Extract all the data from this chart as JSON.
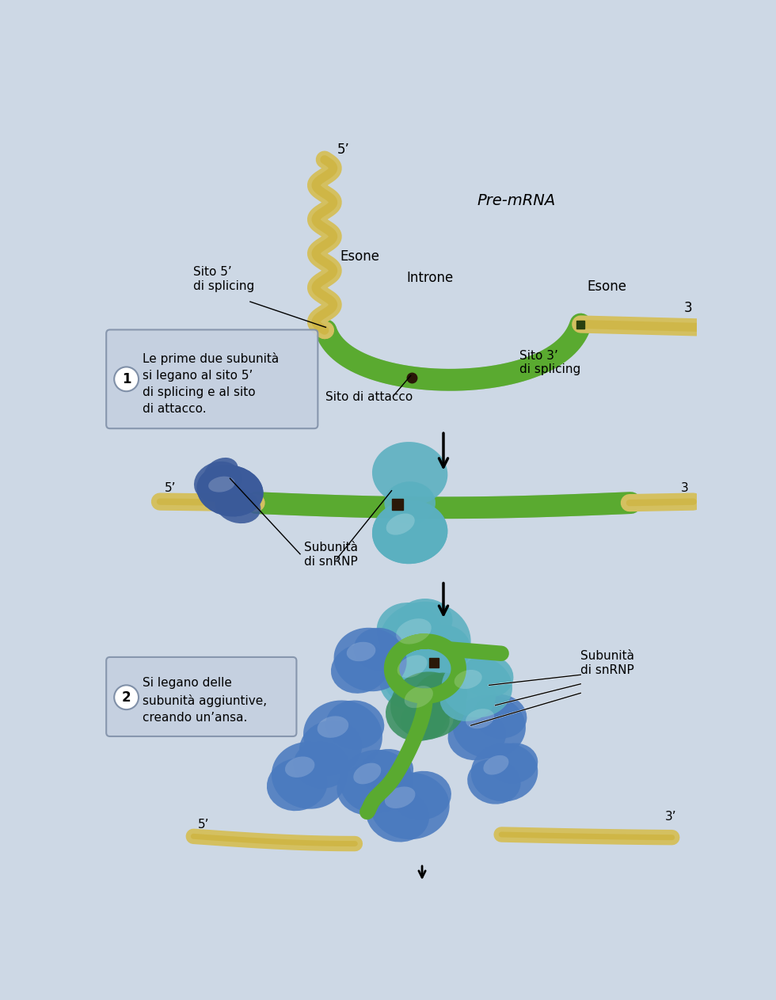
{
  "bg_color": "#cdd8e5",
  "exon_color": "#d4c060",
  "exon_edge": "#b8a040",
  "intron_color": "#5aaa30",
  "intron_edge": "#3a8020",
  "branch_color": "#2a1808",
  "blue_snrnp": "#4a7abf",
  "blue_snrnp2": "#3a5a9a",
  "teal_snrnp": "#5ab0c0",
  "green_snrnp": "#3a9060",
  "box_fill": "#c5d0e0",
  "box_edge": "#8090a8",
  "label1": "Le prime due subunità\nsi legano al sito 5’\ndi splicing e al sito\ndi attacco.",
  "label2": "Si legano delle\nsubunità aggiuntive,\ncreando un’ansa.",
  "mRNA_label": "Pre-mRNA",
  "sito5": "Sito 5’\ndi splicing",
  "sito3": "Sito 3’\ndi splicing",
  "attacco": "Sito di attacco",
  "esone": "Esone",
  "introne": "Introne",
  "subunita": "Subunità\ndi snRNP",
  "subunita2": "Subunità\ndi snRNP"
}
